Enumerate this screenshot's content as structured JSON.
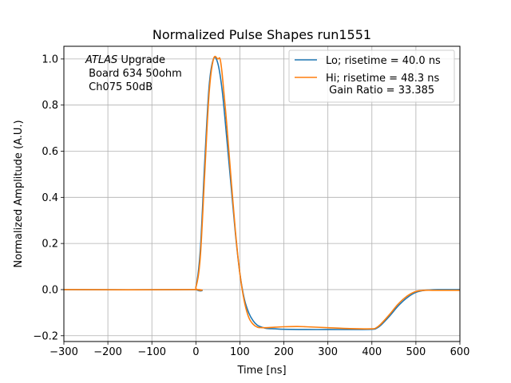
{
  "chart_data": {
    "type": "line",
    "title": "Normalized Pulse Shapes run1551",
    "xlabel": "Time [ns]",
    "ylabel": "Normalized Amplitude (A.U.)",
    "xlim": [
      -300,
      600
    ],
    "ylim": [
      -0.225,
      1.055
    ],
    "xticks": [
      -300,
      -200,
      -100,
      0,
      100,
      200,
      300,
      400,
      500,
      600
    ],
    "xtick_labels": [
      "−300",
      "−200",
      "−100",
      "0",
      "100",
      "200",
      "300",
      "400",
      "500",
      "600"
    ],
    "yticks": [
      -0.2,
      0.0,
      0.2,
      0.4,
      0.6,
      0.8,
      1.0
    ],
    "ytick_labels": [
      "−0.2",
      "0.0",
      "0.2",
      "0.4",
      "0.6",
      "0.8",
      "1.0"
    ],
    "grid": true,
    "legend_position": "top-right",
    "annotation": {
      "lines": [
        {
          "italic": "ATLAS",
          "text": " Upgrade"
        },
        {
          "italic": "",
          "text": " Board 634 50ohm"
        },
        {
          "italic": "",
          "text": " Ch075 50dB"
        }
      ]
    },
    "series": [
      {
        "name": "Lo",
        "legend_lines": [
          "Lo; risetime = 40.0 ns"
        ],
        "color": "#1f77b4",
        "x": [
          -300,
          -10,
          0,
          10,
          20,
          30,
          40,
          50,
          60,
          70,
          80,
          90,
          100,
          110,
          120,
          130,
          140,
          150,
          160,
          180,
          200,
          250,
          300,
          350,
          400,
          410,
          420,
          440,
          460,
          480,
          500,
          520,
          550,
          600
        ],
        "y": [
          0.0,
          0.0,
          0.01,
          0.17,
          0.55,
          0.88,
          1.0,
          0.98,
          0.86,
          0.66,
          0.45,
          0.24,
          0.07,
          -0.04,
          -0.1,
          -0.135,
          -0.155,
          -0.163,
          -0.168,
          -0.17,
          -0.172,
          -0.173,
          -0.173,
          -0.173,
          -0.172,
          -0.168,
          -0.155,
          -0.115,
          -0.07,
          -0.035,
          -0.012,
          -0.003,
          0.0,
          0.0
        ]
      },
      {
        "name": "Hi",
        "legend_lines": [
          "Hi; risetime = 48.3 ns",
          " Gain Ratio = 33.385"
        ],
        "color": "#ff7f0e",
        "x": [
          -300,
          -10,
          0,
          10,
          20,
          30,
          40,
          50,
          55,
          60,
          70,
          80,
          90,
          100,
          110,
          120,
          130,
          140,
          150,
          160,
          180,
          200,
          230,
          250,
          300,
          350,
          400,
          410,
          420,
          440,
          460,
          480,
          500,
          520,
          550,
          600
        ],
        "y": [
          0.0,
          0.0,
          0.01,
          0.14,
          0.5,
          0.85,
          1.0,
          1.0,
          1.0,
          0.93,
          0.72,
          0.48,
          0.25,
          0.07,
          -0.05,
          -0.12,
          -0.15,
          -0.163,
          -0.165,
          -0.165,
          -0.163,
          -0.161,
          -0.16,
          -0.161,
          -0.165,
          -0.169,
          -0.17,
          -0.165,
          -0.15,
          -0.108,
          -0.062,
          -0.028,
          -0.008,
          -0.003,
          -0.003,
          -0.003
        ]
      }
    ]
  }
}
